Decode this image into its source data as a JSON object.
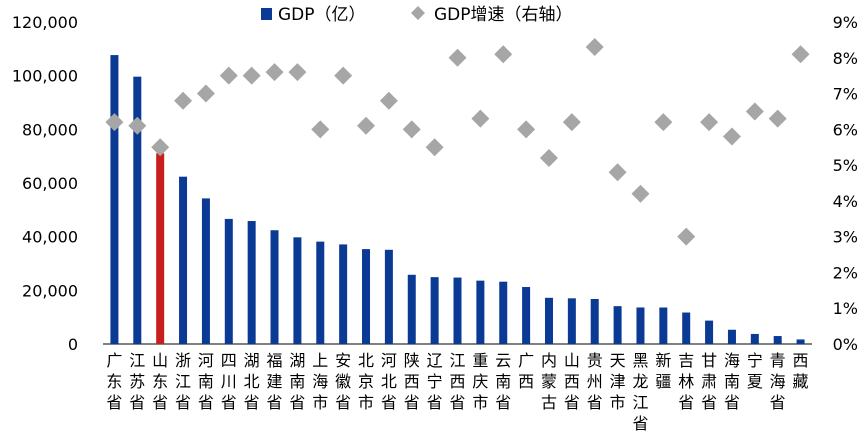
{
  "chart_data": {
    "type": "bar",
    "categories": [
      "广东省",
      "江苏省",
      "山东省",
      "浙江省",
      "河南省",
      "四川省",
      "湖北省",
      "福建省",
      "湖南省",
      "上海市",
      "安徽省",
      "北京市",
      "河北省",
      "陕西省",
      "辽宁省",
      "江西省",
      "重庆市",
      "云南省",
      "广西",
      "内蒙古",
      "山西省",
      "贵州省",
      "天津市",
      "黑龙江省",
      "新疆",
      "吉林省",
      "甘肃省",
      "海南省",
      "宁夏",
      "青海省",
      "西藏"
    ],
    "series": [
      {
        "name": "GDP（亿）",
        "type": "bar",
        "axis": "left",
        "color": "#0a3a94",
        "highlight_color": "#c81e1e",
        "highlight_index": 2,
        "values": [
          107671,
          99631,
          71067,
          62352,
          54259,
          46616,
          45828,
          42395,
          39752,
          38155,
          37114,
          35371,
          35105,
          25793,
          24909,
          24758,
          23606,
          23224,
          21237,
          17213,
          17027,
          16769,
          14104,
          13613,
          13597,
          11727,
          8718,
          5309,
          3748,
          2966,
          1698
        ]
      },
      {
        "name": "GDP增速（右轴）",
        "type": "scatter",
        "axis": "right",
        "color": "#a6a6a6",
        "marker": "diamond",
        "values": [
          6.2,
          6.1,
          5.5,
          6.8,
          7.0,
          7.5,
          7.5,
          7.6,
          7.6,
          6.0,
          7.5,
          6.1,
          6.8,
          6.0,
          5.5,
          8.0,
          6.3,
          8.1,
          6.0,
          5.2,
          6.2,
          8.3,
          4.8,
          4.2,
          6.2,
          3.0,
          6.2,
          5.8,
          6.5,
          6.3,
          8.1
        ]
      }
    ],
    "y_left": {
      "ylim": [
        0,
        120000
      ],
      "ticks": [
        "0",
        "20,000",
        "40,000",
        "60,000",
        "80,000",
        "100,000",
        "120,000"
      ]
    },
    "y_right": {
      "ylim": [
        0,
        9
      ],
      "ticks": [
        "0%",
        "1%",
        "2%",
        "3%",
        "4%",
        "5%",
        "6%",
        "7%",
        "8%",
        "9%"
      ]
    },
    "legend": {
      "position": "top-center"
    },
    "grid": false,
    "title": "",
    "xlabel": "",
    "ylabel": ""
  }
}
